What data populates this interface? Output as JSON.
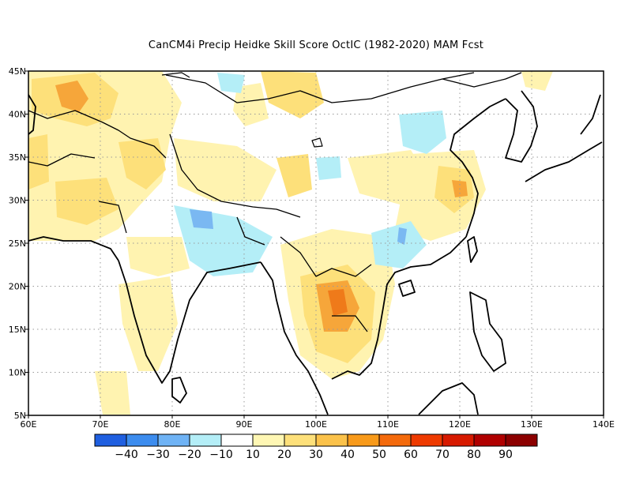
{
  "title": "CanCM4i Precip Heidke Skill Score OctIC (1982-2020) MAM Fcst",
  "map": {
    "lon_range": [
      60,
      140
    ],
    "lat_range": [
      5,
      45
    ],
    "lon_ticks": [
      {
        "value": 60,
        "label": "60E"
      },
      {
        "value": 70,
        "label": "70E"
      },
      {
        "value": 80,
        "label": "80E"
      },
      {
        "value": 90,
        "label": "90E"
      },
      {
        "value": 100,
        "label": "100E"
      },
      {
        "value": 110,
        "label": "110E"
      },
      {
        "value": 120,
        "label": "120E"
      },
      {
        "value": 130,
        "label": "130E"
      },
      {
        "value": 140,
        "label": "140E"
      }
    ],
    "lat_ticks": [
      {
        "value": 5,
        "label": "5N"
      },
      {
        "value": 10,
        "label": "10N"
      },
      {
        "value": 15,
        "label": "15N"
      },
      {
        "value": 20,
        "label": "20N"
      },
      {
        "value": 25,
        "label": "25N"
      },
      {
        "value": 30,
        "label": "30N"
      },
      {
        "value": 35,
        "label": "35N"
      },
      {
        "value": 40,
        "label": "40N"
      },
      {
        "value": 45,
        "label": "45N"
      }
    ],
    "grid": "dotted"
  },
  "colorbar": {
    "colors": [
      "#1f5fe0",
      "#3c8cee",
      "#6fb3f5",
      "#b4eef7",
      "#ffffff",
      "#fff7b4",
      "#fde07a",
      "#fbc24a",
      "#f89a1a",
      "#f46a0c",
      "#ee3a00",
      "#d71a00",
      "#b00000",
      "#8c0000"
    ],
    "labels": [
      "-40",
      "-30",
      "-20",
      "-10",
      "10",
      "20",
      "30",
      "40",
      "50",
      "60",
      "70",
      "80",
      "90"
    ]
  },
  "colors": {
    "pos_light": "#fff3b0",
    "pos_mid": "#fde07a",
    "pos_strong": "#f6a63a",
    "pos_max": "#ef7a1a",
    "neg_light": "#b4eef7",
    "neg_mid": "#7ab8f2",
    "ocean": "#ffffff"
  }
}
